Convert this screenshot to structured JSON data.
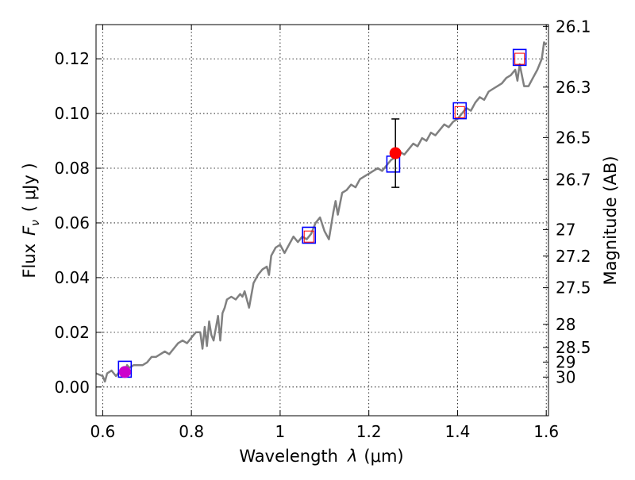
{
  "chart_data": {
    "type": "line",
    "xlabel": "Wavelength",
    "xlabel_symbol": "λ",
    "xlabel_unit": "(μm)",
    "ylabel": "Flux",
    "ylabel_symbol": "F",
    "ylabel_subscript": "ν",
    "ylabel_unit": "( μJy )",
    "y2label": "Magnitude (AB)",
    "xlim": [
      0.585,
      1.605
    ],
    "ylim": [
      -0.0105,
      0.1325
    ],
    "grid": true,
    "x_ticks": [
      {
        "value": 0.6,
        "label": "0.6"
      },
      {
        "value": 0.8,
        "label": "0.8"
      },
      {
        "value": 1.0,
        "label": "1"
      },
      {
        "value": 1.2,
        "label": "1.2"
      },
      {
        "value": 1.4,
        "label": "1.4"
      },
      {
        "value": 1.6,
        "label": "1.6"
      }
    ],
    "y_ticks": [
      {
        "value": 0.0,
        "label": "0.00"
      },
      {
        "value": 0.02,
        "label": "0.02"
      },
      {
        "value": 0.04,
        "label": "0.04"
      },
      {
        "value": 0.06,
        "label": "0.06"
      },
      {
        "value": 0.08,
        "label": "0.08"
      },
      {
        "value": 0.1,
        "label": "0.10"
      },
      {
        "value": 0.12,
        "label": "0.12"
      }
    ],
    "mag_ticks": [
      {
        "mag": 26.1,
        "label": "26.1"
      },
      {
        "mag": 26.3,
        "label": "26.3"
      },
      {
        "mag": 26.5,
        "label": "26.5"
      },
      {
        "mag": 26.7,
        "label": "26.7"
      },
      {
        "mag": 27.0,
        "label": "27"
      },
      {
        "mag": 27.2,
        "label": "27.2"
      },
      {
        "mag": 27.5,
        "label": "27.5"
      },
      {
        "mag": 28.0,
        "label": "28"
      },
      {
        "mag": 28.5,
        "label": "28.5"
      },
      {
        "mag": 29.0,
        "label": "29"
      },
      {
        "mag": 30.0,
        "label": "30"
      }
    ],
    "series": [
      {
        "name": "model spectrum",
        "color": "#808080",
        "x": [
          0.585,
          0.6,
          0.605,
          0.61,
          0.62,
          0.63,
          0.64,
          0.65,
          0.655,
          0.66,
          0.67,
          0.68,
          0.69,
          0.7,
          0.71,
          0.72,
          0.73,
          0.74,
          0.75,
          0.76,
          0.77,
          0.78,
          0.79,
          0.8,
          0.81,
          0.82,
          0.825,
          0.83,
          0.835,
          0.84,
          0.845,
          0.85,
          0.86,
          0.865,
          0.87,
          0.875,
          0.88,
          0.89,
          0.9,
          0.91,
          0.915,
          0.92,
          0.93,
          0.94,
          0.95,
          0.96,
          0.97,
          0.975,
          0.98,
          0.99,
          1.0,
          1.01,
          1.02,
          1.03,
          1.04,
          1.05,
          1.06,
          1.07,
          1.08,
          1.09,
          1.1,
          1.11,
          1.12,
          1.125,
          1.13,
          1.14,
          1.15,
          1.16,
          1.17,
          1.18,
          1.19,
          1.2,
          1.21,
          1.22,
          1.23,
          1.24,
          1.25,
          1.26,
          1.27,
          1.28,
          1.29,
          1.3,
          1.31,
          1.32,
          1.33,
          1.34,
          1.35,
          1.36,
          1.37,
          1.38,
          1.39,
          1.4,
          1.41,
          1.42,
          1.43,
          1.44,
          1.45,
          1.46,
          1.47,
          1.48,
          1.49,
          1.5,
          1.51,
          1.52,
          1.53,
          1.535,
          1.54,
          1.55,
          1.56,
          1.57,
          1.58,
          1.59,
          1.595,
          1.6
        ],
        "values": [
          0.005,
          0.004,
          0.002,
          0.005,
          0.006,
          0.004,
          0.006,
          0.005,
          0.008,
          0.007,
          0.008,
          0.008,
          0.008,
          0.009,
          0.011,
          0.011,
          0.012,
          0.013,
          0.012,
          0.014,
          0.016,
          0.017,
          0.016,
          0.018,
          0.02,
          0.02,
          0.014,
          0.022,
          0.015,
          0.024,
          0.019,
          0.017,
          0.026,
          0.017,
          0.027,
          0.029,
          0.032,
          0.033,
          0.032,
          0.034,
          0.033,
          0.035,
          0.029,
          0.038,
          0.041,
          0.043,
          0.044,
          0.041,
          0.048,
          0.051,
          0.052,
          0.049,
          0.052,
          0.055,
          0.053,
          0.055,
          0.054,
          0.056,
          0.06,
          0.062,
          0.057,
          0.054,
          0.064,
          0.068,
          0.063,
          0.071,
          0.072,
          0.074,
          0.073,
          0.076,
          0.077,
          0.078,
          0.079,
          0.08,
          0.079,
          0.081,
          0.083,
          0.084,
          0.086,
          0.085,
          0.087,
          0.089,
          0.088,
          0.091,
          0.09,
          0.093,
          0.092,
          0.094,
          0.096,
          0.095,
          0.097,
          0.098,
          0.1,
          0.102,
          0.101,
          0.104,
          0.106,
          0.105,
          0.108,
          0.109,
          0.11,
          0.111,
          0.113,
          0.114,
          0.116,
          0.112,
          0.118,
          0.11,
          0.11,
          0.113,
          0.116,
          0.12,
          0.126,
          0.125
        ]
      }
    ],
    "photometry": [
      {
        "x": 0.65,
        "y": 0.0055,
        "err": 0.0015,
        "color": "#cc00cc"
      },
      {
        "x": 1.26,
        "y": 0.0855,
        "err": 0.0125,
        "color": "#ff0000"
      }
    ],
    "model_boxes_blue": [
      {
        "x": 0.65,
        "y": 0.0065
      },
      {
        "x": 1.065,
        "y": 0.0555
      },
      {
        "x": 1.255,
        "y": 0.0815
      },
      {
        "x": 1.405,
        "y": 0.101
      },
      {
        "x": 1.54,
        "y": 0.1205
      }
    ],
    "model_boxes_red": [
      {
        "x": 1.065,
        "y": 0.055
      },
      {
        "x": 1.405,
        "y": 0.1005
      },
      {
        "x": 1.54,
        "y": 0.12
      }
    ]
  }
}
